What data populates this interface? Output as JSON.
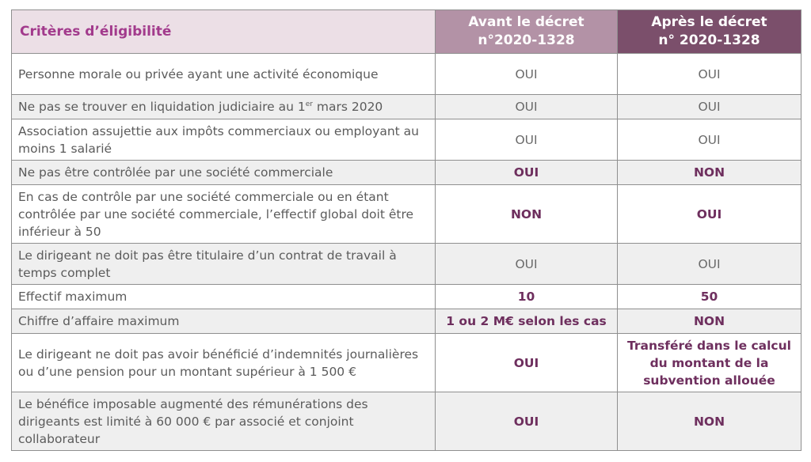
{
  "header": {
    "criteria": "Critères d’éligibilité",
    "before_line1": "Avant le décret",
    "before_line2": "n°2020-1328",
    "after_line1": "Après le décret",
    "after_line2": "n° 2020-1328"
  },
  "rows": [
    {
      "criterion": "Personne morale ou privée ayant une activité économique",
      "before": "OUI",
      "after": "OUI"
    },
    {
      "criterion_pre": "Ne pas se trouver en liquidation judiciaire au 1",
      "criterion_sup": "er",
      "criterion_post": " mars 2020",
      "before": "OUI",
      "after": "OUI"
    },
    {
      "criterion": "Association assujettie aux impôts commerciaux ou employant au moins 1 salarié",
      "before": "OUI",
      "after": "OUI"
    },
    {
      "criterion": "Ne pas être contrôlée par une société commerciale",
      "before": "OUI",
      "after": "NON"
    },
    {
      "criterion": "En cas de contrôle par une société commerciale ou en étant contrôlée par une société commerciale, l’effectif global doit être inférieur à 50",
      "before": "NON",
      "after": "OUI"
    },
    {
      "criterion": "Le dirigeant ne doit pas être titulaire d’un contrat de travail à temps complet",
      "before": "OUI",
      "after": "OUI"
    },
    {
      "criterion": "Effectif maximum",
      "before": "10",
      "after": "50"
    },
    {
      "criterion": "Chiffre d’affaire maximum",
      "before": "1 ou 2 M€ selon les cas",
      "after": "NON"
    },
    {
      "criterion": "Le dirigeant ne doit pas avoir bénéficié d’indemnités journalières ou d’une pension pour un montant supérieur à 1 500 €",
      "before": "OUI",
      "after": "Transféré dans le calcul du montant de la subvention allouée"
    },
    {
      "criterion": "Le bénéfice imposable augmenté des rémunérations des dirigeants est limité à 60 000 € par associé et conjoint collaborateur",
      "before": "OUI",
      "after": "NON"
    }
  ]
}
